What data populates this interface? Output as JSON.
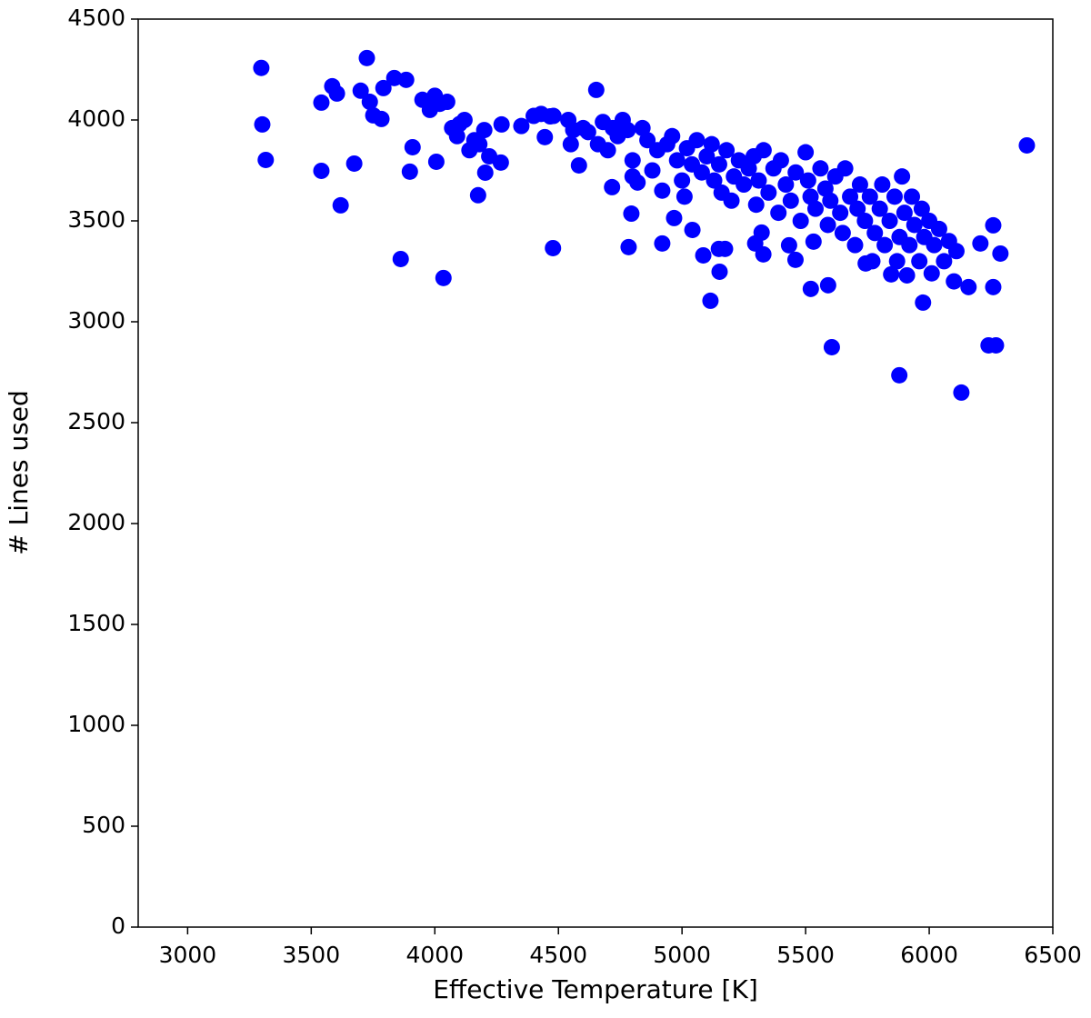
{
  "chart_data": {
    "type": "scatter",
    "xlabel": "Effective Temperature [K]",
    "ylabel": "# Lines used",
    "color": "#0000ff",
    "xlim": [
      2800,
      6500
    ],
    "xticks": [
      3000,
      3500,
      4000,
      4500,
      5000,
      5500,
      6000,
      6500
    ],
    "ylim": [
      0,
      4500
    ],
    "yticks": [
      0,
      500,
      1000,
      1500,
      2000,
      2500,
      3000,
      3500,
      4000,
      4500
    ],
    "x": [
      3298,
      3302,
      3316,
      3541,
      3541,
      3585,
      3604,
      3619,
      3674,
      3700,
      3725,
      3737,
      3751,
      3784,
      3792,
      3836,
      3862,
      3884,
      3910,
      3899,
      4006,
      4035,
      4175,
      4204,
      4267,
      4270,
      4478,
      4445,
      4467,
      4653,
      4583,
      4717,
      4784,
      4795,
      4920,
      4968,
      5042,
      5086,
      5115,
      5149,
      5174,
      5152,
      5296,
      5322,
      5329,
      5433,
      5459,
      5521,
      5532,
      5591,
      5606,
      5743,
      5879,
      5846,
      5975,
      6130,
      6240,
      6270,
      6259,
      6259,
      6288,
      6395,
      6207,
      6159,
      3950,
      3980,
      4000,
      4020,
      4050,
      4070,
      4090,
      4100,
      4120,
      4140,
      4160,
      4180,
      4200,
      4220,
      4350,
      4400,
      4430,
      4480,
      4540,
      4550,
      4560,
      4600,
      4620,
      4660,
      4680,
      4700,
      4720,
      4740,
      4760,
      4780,
      4800,
      4800,
      4820,
      4840,
      4860,
      4880,
      4900,
      4920,
      4940,
      4960,
      4980,
      5000,
      5010,
      5020,
      5040,
      5060,
      5080,
      5100,
      5120,
      5130,
      5150,
      5160,
      5180,
      5200,
      5210,
      5230,
      5250,
      5270,
      5290,
      5300,
      5310,
      5330,
      5350,
      5370,
      5390,
      5400,
      5420,
      5440,
      5460,
      5480,
      5500,
      5510,
      5520,
      5540,
      5560,
      5580,
      5590,
      5600,
      5620,
      5640,
      5650,
      5660,
      5680,
      5700,
      5710,
      5720,
      5740,
      5760,
      5770,
      5780,
      5800,
      5810,
      5820,
      5840,
      5860,
      5870,
      5880,
      5890,
      5900,
      5910,
      5920,
      5930,
      5940,
      5960,
      5970,
      5980,
      6000,
      6010,
      6020,
      6040,
      6060,
      6080,
      6100,
      6110
    ],
    "values": [
      4258,
      3978,
      3802,
      3748,
      4086,
      4167,
      4131,
      3577,
      3784,
      4145,
      4307,
      4090,
      4023,
      4005,
      4158,
      4208,
      3311,
      4199,
      3865,
      3744,
      3793,
      3217,
      3627,
      3739,
      3789,
      3978,
      3365,
      3915,
      4018,
      4149,
      3775,
      3667,
      3370,
      3536,
      3388,
      3514,
      3455,
      3329,
      3104,
      3361,
      3361,
      3248,
      3388,
      3442,
      3334,
      3379,
      3307,
      3163,
      3397,
      3181,
      2874,
      3289,
      2735,
      3235,
      3095,
      2649,
      2883,
      2883,
      3172,
      3478,
      3338,
      3874,
      3388,
      3172,
      4100,
      4050,
      4120,
      4080,
      4090,
      3960,
      3920,
      3980,
      4000,
      3850,
      3900,
      3880,
      3950,
      3820,
      3970,
      4020,
      4030,
      4020,
      4000,
      3880,
      3950,
      3960,
      3940,
      3880,
      3990,
      3850,
      3960,
      3920,
      4000,
      3950,
      3800,
      3720,
      3690,
      3960,
      3900,
      3750,
      3850,
      3650,
      3880,
      3920,
      3800,
      3700,
      3620,
      3860,
      3780,
      3900,
      3740,
      3820,
      3880,
      3700,
      3780,
      3640,
      3850,
      3600,
      3720,
      3800,
      3680,
      3760,
      3820,
      3580,
      3700,
      3850,
      3640,
      3760,
      3540,
      3800,
      3680,
      3600,
      3740,
      3500,
      3840,
      3700,
      3620,
      3560,
      3760,
      3660,
      3480,
      3600,
      3720,
      3540,
      3440,
      3760,
      3620,
      3380,
      3560,
      3680,
      3500,
      3620,
      3300,
      3440,
      3560,
      3680,
      3380,
      3500,
      3620,
      3300,
      3420,
      3720,
      3540,
      3230,
      3380,
      3620,
      3480,
      3300,
      3560,
      3420,
      3500,
      3240,
      3380,
      3460,
      3300,
      3400,
      3200,
      3350
    ]
  }
}
